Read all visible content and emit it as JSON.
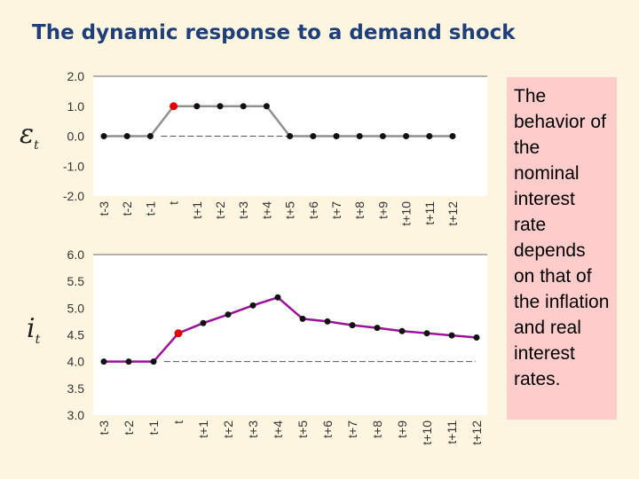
{
  "title": "The dynamic response to a demand shock",
  "note": "The behavior of the nominal interest rate depends on that of the inflation and real interest rates.",
  "colors": {
    "line1": "#909090",
    "line2": "#9a119a",
    "point": "#111111",
    "highlight": "#e00000",
    "title": "#1f3f7a",
    "note_bg": "#ffcccc",
    "plot_bg": "#ffffff"
  },
  "chart_data": [
    {
      "type": "line",
      "ylabel_symbol": "ε",
      "ylabel_subscript": "t",
      "categories": [
        "t-3",
        "t-2",
        "t-1",
        "t",
        "t+1",
        "t+2",
        "t+3",
        "t+4",
        "t+5",
        "t+6",
        "t+7",
        "t+8",
        "t+9",
        "t+10",
        "t+11",
        "t+12"
      ],
      "values": [
        0,
        0,
        0,
        1,
        1,
        1,
        1,
        1,
        0,
        0,
        0,
        0,
        0,
        0,
        0,
        0
      ],
      "baseline": 0,
      "ylim": [
        -2,
        2
      ],
      "yticks": [
        "2.0",
        "1.0",
        "0.0",
        "-1.0",
        "-2.0"
      ],
      "highlight_index": 3,
      "grid": false
    },
    {
      "type": "line",
      "ylabel_symbol": "i",
      "ylabel_subscript": "t",
      "categories": [
        "t-3",
        "t-2",
        "t-1",
        "t",
        "t+1",
        "t+2",
        "t+3",
        "t+4",
        "t+5",
        "t+6",
        "t+7",
        "t+8",
        "t+9",
        "t+10",
        "t+11",
        "t+12"
      ],
      "values": [
        4.0,
        4.0,
        4.0,
        4.53,
        4.72,
        4.88,
        5.05,
        5.2,
        4.8,
        4.75,
        4.68,
        4.63,
        4.57,
        4.53,
        4.49,
        4.45
      ],
      "baseline": 4.0,
      "ylim": [
        3.0,
        6.0
      ],
      "yticks": [
        "6.0",
        "5.5",
        "5.0",
        "4.5",
        "4.0",
        "3.5",
        "3.0"
      ],
      "highlight_index": 3,
      "grid": false
    }
  ]
}
